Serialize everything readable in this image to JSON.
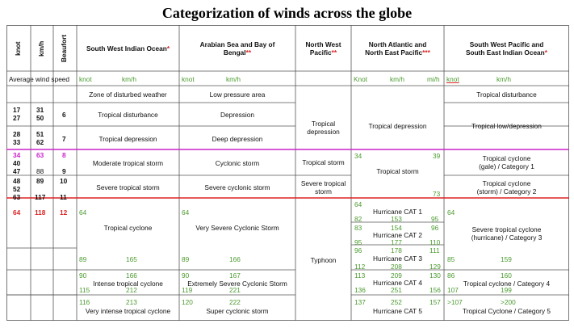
{
  "title": "Categorization of winds across the globe",
  "headers": {
    "knot": "knot",
    "kmh": "km/h",
    "beaufort": "Beaufort",
    "swio": "South West Indian Ocean",
    "swio_star": "*",
    "arabian_line1": "Arabian Sea and Bay of",
    "arabian_line2": "Bengal",
    "arabian_star": "**",
    "nwp_line1": "North West",
    "nwp_line2": "Pacific",
    "nwp_star": "**",
    "na_line1": "North Atlantic and",
    "na_line2": "North East Pacific",
    "na_star": "***",
    "swp_line1": "South West Pacific and",
    "swp_line2": "South East Indian Ocean",
    "swp_star": "*"
  },
  "avg_row": {
    "label": "Average wind speed",
    "swio_knot": "knot",
    "swio_kmh": "km/h",
    "ar_knot": "knot",
    "ar_kmh": "km/h",
    "na_knot": "Knot",
    "na_kmh": "km/h",
    "na_mih": "mi/h",
    "swp_knot": "knot",
    "swp_kmh": "km/h"
  },
  "scale": {
    "k1": "17",
    "k2": "27",
    "km1": "31",
    "km2": "50",
    "bf1": "6",
    "k3": "28",
    "k4": "33",
    "km3": "51",
    "km4": "62",
    "bf2": "7",
    "k5": "34",
    "km5": "63",
    "bf3": "8",
    "k6": "40",
    "k7": "47",
    "km7": "88",
    "bf4": "9",
    "k8": "48",
    "km8": "89",
    "bf5": "10",
    "k9": "52",
    "k10": "63",
    "km10": "117",
    "bf6": "11",
    "k11": "64",
    "km11": "118",
    "bf7": "12"
  },
  "swio": {
    "r1": "Zone of disturbed weather",
    "r2": "Tropical disturbance",
    "r3": "Tropical depression",
    "r4": "Moderate tropical storm",
    "r5": "Severe tropical storm",
    "tc_k": "64",
    "tc": "Tropical cyclone",
    "tc_k2": "89",
    "tc_km2": "165",
    "itc_k1": "90",
    "itc_km1": "166",
    "itc_k2": "115",
    "itc_km2": "212",
    "itc": "Intense tropical cyclone",
    "vitc_k": "116",
    "vitc_km": "213",
    "vitc": "Very intense tropical cyclone"
  },
  "arabian": {
    "r1": "Low pressure area",
    "r2": "Depression",
    "r3": "Deep depression",
    "r4": "Cyclonic storm",
    "r5": "Severe cyclonic storm",
    "vs_k": "64",
    "vs": "Very Severe Cyclonic Storm",
    "vs_k2": "89",
    "vs_km2": "166",
    "es_k1": "90",
    "es_km1": "167",
    "es_k2": "119",
    "es_km2": "221",
    "es": "Extremely Severe Cyclonic Storm",
    "sc_k": "120",
    "sc_km": "222",
    "sc": "Super cyclonic storm"
  },
  "nwp": {
    "dep_line1": "Tropical",
    "dep_line2": "depression",
    "storm": "Tropical storm",
    "sev_line1": "Severe tropical",
    "sev_line2": "storm",
    "typhoon": "Typhoon"
  },
  "na": {
    "dep": "Tropical depression",
    "ts_k1": "34",
    "ts_k2": "39",
    "ts": "Tropical storm",
    "ts_k3": "73",
    "c1_k": "64",
    "c1": "Hurricane CAT 1",
    "c1_a": "82",
    "c1_b": "153",
    "c1_c": "95",
    "c2_a": "83",
    "c2_b": "154",
    "c2_c": "96",
    "c2": "Hurricane CAT 2",
    "c2_d": "95",
    "c2_e": "177",
    "c2_f": "110",
    "c3_a": "96",
    "c3_b": "178",
    "c3_c": "111",
    "c3": "Hurricane CAT 3",
    "c3_d": "112",
    "c3_e": "208",
    "c3_f": "129",
    "c4_a": "113",
    "c4_b": "209",
    "c4_c": "130",
    "c4": "Hurricane CAT 4",
    "c4_d": "136",
    "c4_e": "251",
    "c4_f": "156",
    "c5_a": "137",
    "c5_b": "252",
    "c5_c": "157",
    "c5": "Hurricane CAT 5"
  },
  "swp": {
    "dist": "Tropical disturbance",
    "low": "Tropical low/depression",
    "g_line1": "Tropical cyclone",
    "g_line2": "(gale) / Category 1",
    "s_line1": "Tropical cyclone",
    "s_line2": "(storm) / Category 2",
    "h_k": "64",
    "h_line1": "Severe tropical cyclone",
    "h_line2": "(hurricane) / Category 3",
    "h_k2": "85",
    "h_km2": "159",
    "c4_k": "86",
    "c4_km": "160",
    "c4": "Tropical cyclone / Category 4",
    "c4_k2": "107",
    "c4_km2": "199",
    "c5_k": ">107",
    "c5_km": ">200",
    "c5": "Tropical Cyclone / Category 5"
  },
  "colors": {
    "magenta": "#cc22cc",
    "red": "#dd2222",
    "green": "#4a9a2e"
  }
}
